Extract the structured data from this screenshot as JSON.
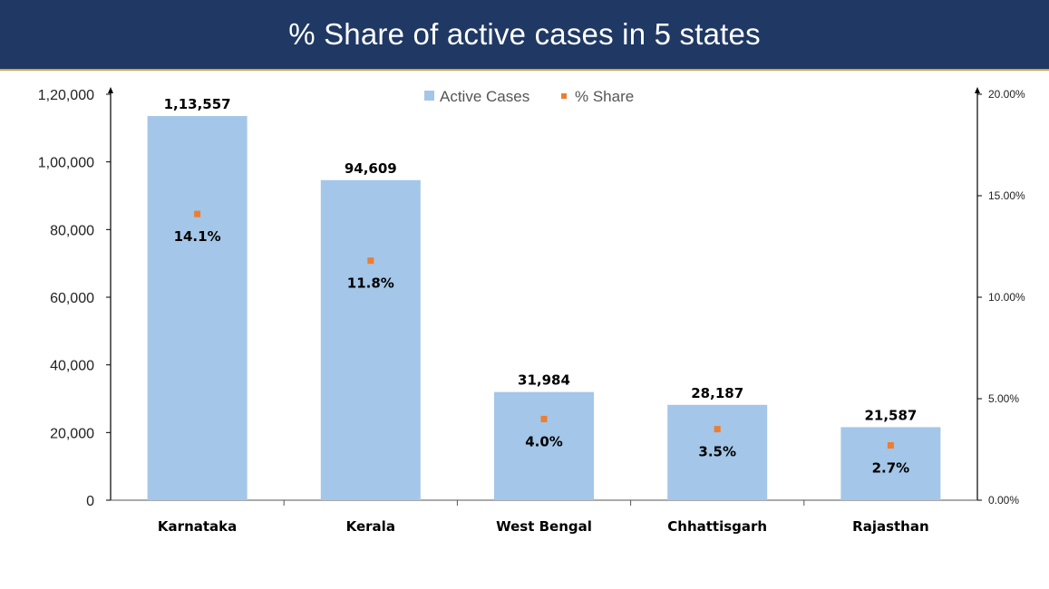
{
  "title": "% Share of active cases in 5 states",
  "colors": {
    "header_bg": "#1f3864",
    "bar": "#a4c6e8",
    "marker": "#ed7d31"
  },
  "chart_data": {
    "type": "bar",
    "title": "% Share of active cases in 5 states",
    "categories": [
      "Karnataka",
      "Kerala",
      "West Bengal",
      "Chhattisgarh",
      "Rajasthan"
    ],
    "series": [
      {
        "name": "Active Cases",
        "type": "bar",
        "axis": "left",
        "values": [
          113557,
          94609,
          31984,
          28187,
          21587
        ],
        "labels": [
          "1,13,557",
          "94,609",
          "31,984",
          "28,187",
          "21,587"
        ]
      },
      {
        "name": "% Share",
        "type": "scatter",
        "axis": "right",
        "values": [
          14.1,
          11.8,
          4.0,
          3.5,
          2.7
        ],
        "labels": [
          "14.1%",
          "11.8%",
          "4.0%",
          "3.5%",
          "2.7%"
        ]
      }
    ],
    "y_left": {
      "ylim": [
        0,
        120000
      ],
      "ticks": [
        "0",
        "20,000",
        "40,000",
        "60,000",
        "80,000",
        "1,00,000",
        "1,20,000"
      ]
    },
    "y_right": {
      "ylim": [
        0,
        20
      ],
      "ticks": [
        "0.00%",
        "5.00%",
        "10.00%",
        "15.00%",
        "20.00%"
      ]
    },
    "legend": {
      "position": "top-center",
      "entries": [
        "Active Cases",
        "% Share"
      ]
    },
    "grid": false
  }
}
